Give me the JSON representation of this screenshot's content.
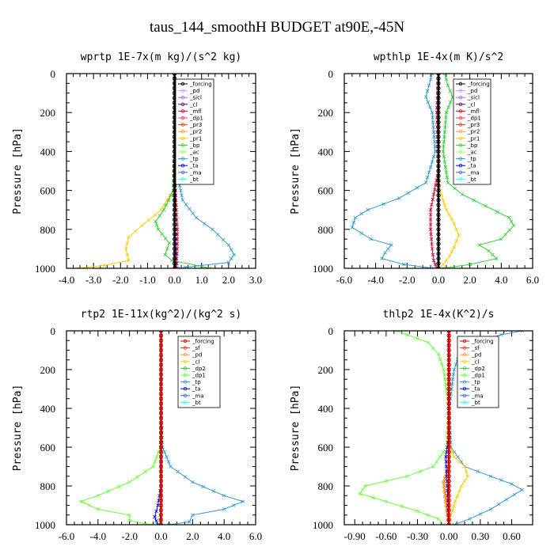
{
  "title": "taus_144_smoothH  BUDGET at90E,-45N",
  "chart_data": [
    {
      "type": "line",
      "title": "wprtp  1E-7x(m kg)/(s^2 kg)",
      "ylabel": "Pressure [hPa]",
      "xlim": [
        -4.0,
        3.0
      ],
      "ylim": [
        1000,
        0
      ],
      "xticks": [
        "-4.0",
        "-3.0",
        "-2.0",
        "-1.0",
        "0.0",
        "1.0",
        "2.0",
        "3.0"
      ],
      "xtick_values": [
        -4,
        -3,
        -2,
        -1,
        0,
        1,
        2,
        3
      ],
      "yticks": [
        "0",
        "200",
        "400",
        "600",
        "800",
        "1000"
      ],
      "ytick_values": [
        0,
        200,
        400,
        600,
        800,
        1000
      ],
      "legend": [
        "_forcing",
        "_pd",
        "_sicl",
        "_cl",
        "_mfl",
        "_dp1",
        "_pr3",
        "_pr2",
        "_pr1",
        "_bp",
        "_ac",
        "_tp",
        "_ta",
        "_ma",
        "_bt"
      ],
      "legend_colors": [
        "#000000",
        "#cc99ff",
        "#9966ff",
        "#660066",
        "#cc0033",
        "#ff3366",
        "#ff3300",
        "#ff9933",
        "#ffcc00",
        "#33cc33",
        "#99ff66",
        "#3399cc",
        "#0000cc",
        "#3366ff",
        "#33ffff"
      ],
      "series": [
        {
          "name": "_pr1",
          "color": "#ffcc00",
          "points": [
            [
              0,
              0
            ],
            [
              0,
              200
            ],
            [
              0,
              400
            ],
            [
              -0.05,
              600
            ],
            [
              -0.5,
              700
            ],
            [
              -1.2,
              780
            ],
            [
              -1.7,
              840
            ],
            [
              -1.8,
              900
            ],
            [
              -1.7,
              960
            ],
            [
              -2.6,
              985
            ],
            [
              -3.6,
              1000
            ]
          ]
        },
        {
          "name": "_bp",
          "color": "#33cc33",
          "points": [
            [
              0,
              0
            ],
            [
              0,
              400
            ],
            [
              -0.05,
              600
            ],
            [
              -0.4,
              700
            ],
            [
              -0.7,
              760
            ],
            [
              -0.6,
              800
            ],
            [
              -0.2,
              870
            ],
            [
              -0.35,
              930
            ],
            [
              -0.1,
              960
            ],
            [
              1.0,
              990
            ],
            [
              1.3,
              1000
            ]
          ]
        },
        {
          "name": "_tp",
          "color": "#3399cc",
          "points": [
            [
              0,
              0
            ],
            [
              0,
              400
            ],
            [
              0.15,
              550
            ],
            [
              0.3,
              650
            ],
            [
              0.8,
              740
            ],
            [
              1.4,
              800
            ],
            [
              2.0,
              880
            ],
            [
              2.2,
              930
            ],
            [
              2.0,
              970
            ],
            [
              0.4,
              995
            ],
            [
              0.2,
              1000
            ]
          ]
        },
        {
          "name": "_ma",
          "color": "#3366ff",
          "points": [
            [
              0,
              0
            ],
            [
              0,
              700
            ],
            [
              0.05,
              900
            ],
            [
              0.1,
              1000
            ]
          ]
        },
        {
          "name": "_mfl",
          "color": "#cc0033",
          "points": [
            [
              0,
              0
            ],
            [
              0,
              500
            ],
            [
              0.1,
              800
            ],
            [
              0.1,
              900
            ],
            [
              0.05,
              1000
            ]
          ]
        },
        {
          "name": "_forcing",
          "color": "#000000",
          "points": [
            [
              0,
              0
            ],
            [
              0,
              1000
            ]
          ]
        }
      ]
    },
    {
      "type": "line",
      "title": "wpthlp  1E-4x(m K)/s^2",
      "ylabel": "Pressure [hPa]",
      "xlim": [
        -6.0,
        6.0
      ],
      "ylim": [
        1000,
        0
      ],
      "xticks": [
        "-6.0",
        "-4.0",
        "-2.0",
        "0.0",
        "2.0",
        "4.0",
        "6.0"
      ],
      "xtick_values": [
        -6,
        -4,
        -2,
        0,
        2,
        4,
        6
      ],
      "yticks": [
        "0",
        "200",
        "400",
        "600",
        "800",
        "1000"
      ],
      "ytick_values": [
        0,
        200,
        400,
        600,
        800,
        1000
      ],
      "legend": [
        "_forcing",
        "_pd",
        "_sicl",
        "_cl",
        "_mfl",
        "_dp1",
        "_pr3",
        "_pr2",
        "_pr1",
        "_bp",
        "_ac",
        "_tp",
        "_ta",
        "_ma",
        "_bt"
      ],
      "legend_colors": [
        "#000000",
        "#cc99ff",
        "#9966ff",
        "#660066",
        "#cc0033",
        "#ff3366",
        "#ff3300",
        "#ff9933",
        "#ffcc00",
        "#33cc33",
        "#99ff66",
        "#3399cc",
        "#0000cc",
        "#3366ff",
        "#33ffff"
      ],
      "series": [
        {
          "name": "_bp",
          "color": "#33cc33",
          "points": [
            [
              0.4,
              0
            ],
            [
              0.6,
              60
            ],
            [
              0.9,
              120
            ],
            [
              0.5,
              200
            ],
            [
              0.3,
              400
            ],
            [
              0.6,
              560
            ],
            [
              1.5,
              620
            ],
            [
              3.0,
              680
            ],
            [
              4.5,
              740
            ],
            [
              4.8,
              780
            ],
            [
              4.0,
              850
            ],
            [
              2.6,
              880
            ],
            [
              3.2,
              910
            ],
            [
              3.7,
              950
            ],
            [
              2.0,
              980
            ],
            [
              0.3,
              1000
            ]
          ]
        },
        {
          "name": "_tp",
          "color": "#3399cc",
          "points": [
            [
              -0.4,
              0
            ],
            [
              -0.6,
              60
            ],
            [
              -0.8,
              120
            ],
            [
              -0.4,
              200
            ],
            [
              -0.2,
              400
            ],
            [
              -0.8,
              560
            ],
            [
              -2.5,
              640
            ],
            [
              -4.5,
              700
            ],
            [
              -5.3,
              740
            ],
            [
              -5.5,
              790
            ],
            [
              -4.3,
              850
            ],
            [
              -3.0,
              880
            ],
            [
              -3.4,
              920
            ],
            [
              -3.6,
              950
            ],
            [
              -2.2,
              980
            ],
            [
              -0.3,
              1000
            ]
          ]
        },
        {
          "name": "_pr1",
          "color": "#ffcc00",
          "points": [
            [
              0,
              0
            ],
            [
              0,
              500
            ],
            [
              0.1,
              600
            ],
            [
              0.5,
              700
            ],
            [
              1.0,
              770
            ],
            [
              1.3,
              830
            ],
            [
              1.0,
              890
            ],
            [
              0.7,
              940
            ],
            [
              0.3,
              980
            ],
            [
              0,
              1000
            ]
          ]
        },
        {
          "name": "_cl",
          "color": "#cc0033",
          "points": [
            [
              0,
              0
            ],
            [
              -0.1,
              200
            ],
            [
              0,
              500
            ],
            [
              -0.3,
              620
            ],
            [
              -0.5,
              700
            ],
            [
              -0.5,
              800
            ],
            [
              -0.4,
              900
            ],
            [
              -0.3,
              960
            ],
            [
              -0.1,
              1000
            ]
          ]
        },
        {
          "name": "_pd",
          "color": "#cc99ff",
          "points": [
            [
              0,
              0
            ],
            [
              0,
              1000
            ]
          ]
        },
        {
          "name": "_forcing",
          "color": "#000000",
          "points": [
            [
              0,
              0
            ],
            [
              0,
              1000
            ]
          ]
        }
      ]
    },
    {
      "type": "line",
      "title": "rtp2  1E-11x(kg^2)/(kg^2 s)",
      "ylabel": "Pressure [hPa]",
      "xlim": [
        -6.0,
        6.0
      ],
      "ylim": [
        1000,
        0
      ],
      "xticks": [
        "-6.0",
        "-4.0",
        "-2.0",
        "0.0",
        "2.0",
        "4.0",
        "6.0"
      ],
      "xtick_values": [
        -6,
        -4,
        -2,
        0,
        2,
        4,
        6
      ],
      "yticks": [
        "0",
        "200",
        "400",
        "600",
        "800",
        "1000"
      ],
      "ytick_values": [
        0,
        200,
        400,
        600,
        800,
        1000
      ],
      "legend": [
        "_forcing",
        "_sf",
        "_pd",
        "_cl",
        "_dp2",
        "_dp1",
        "_tp",
        "_ta",
        "_ma",
        "_bt"
      ],
      "legend_colors": [
        "#cc0000",
        "#ff3300",
        "#ff9933",
        "#ffcc00",
        "#33cc33",
        "#66ff33",
        "#3399cc",
        "#0000cc",
        "#3366ff",
        "#33ffff"
      ],
      "series": [
        {
          "name": "_dp1",
          "color": "#66ff33",
          "points": [
            [
              0,
              0
            ],
            [
              0,
              400
            ],
            [
              -0.05,
              600
            ],
            [
              -0.5,
              700
            ],
            [
              -2.0,
              780
            ],
            [
              -4.0,
              850
            ],
            [
              -5.1,
              880
            ],
            [
              -4.0,
              920
            ],
            [
              -2.0,
              950
            ],
            [
              -2.0,
              980
            ],
            [
              -1.0,
              995
            ],
            [
              -0.5,
              1000
            ]
          ]
        },
        {
          "name": "_tp",
          "color": "#3399cc",
          "points": [
            [
              0,
              0
            ],
            [
              0,
              400
            ],
            [
              0.1,
              600
            ],
            [
              0.6,
              700
            ],
            [
              2.0,
              780
            ],
            [
              4.0,
              850
            ],
            [
              5.2,
              880
            ],
            [
              4.0,
              920
            ],
            [
              2.0,
              950
            ],
            [
              1.8,
              985
            ],
            [
              0.5,
              1000
            ]
          ]
        },
        {
          "name": "_ta",
          "color": "#0000cc",
          "points": [
            [
              0,
              0
            ],
            [
              0,
              800
            ],
            [
              -0.2,
              900
            ],
            [
              -0.4,
              960
            ],
            [
              -0.2,
              1000
            ]
          ]
        },
        {
          "name": "_dp2",
          "color": "#33cc33",
          "points": [
            [
              0,
              0
            ],
            [
              0,
              900
            ],
            [
              -0.1,
              1000
            ]
          ]
        },
        {
          "name": "_forcing",
          "color": "#cc0000",
          "points": [
            [
              0,
              0
            ],
            [
              0,
              1000
            ]
          ]
        }
      ]
    },
    {
      "type": "line",
      "title": "thlp2  1E-4x(K^2)/s",
      "ylabel": "Pressure [hPa]",
      "xlim": [
        -1.0,
        0.8
      ],
      "ylim": [
        1000,
        0
      ],
      "xticks": [
        "-0.90",
        "-0.60",
        "-0.30",
        "0.00",
        "0.30",
        "0.60"
      ],
      "xtick_values": [
        -0.9,
        -0.6,
        -0.3,
        0.0,
        0.3,
        0.6
      ],
      "yticks": [
        "0",
        "200",
        "400",
        "600",
        "800",
        "1000"
      ],
      "ytick_values": [
        0,
        200,
        400,
        600,
        800,
        1000
      ],
      "legend": [
        "_forcing",
        "_sf",
        "_pd",
        "_cl",
        "_dp2",
        "_dp1",
        "_tp",
        "_ta",
        "_ma",
        "_bt"
      ],
      "legend_colors": [
        "#cc0000",
        "#ff3300",
        "#ff9933",
        "#ffcc00",
        "#33cc33",
        "#66ff33",
        "#3399cc",
        "#0000cc",
        "#3366ff",
        "#33ffff"
      ],
      "series": [
        {
          "name": "_dp1",
          "color": "#66ff33",
          "points": [
            [
              -0.5,
              0
            ],
            [
              -0.4,
              20
            ],
            [
              -0.2,
              60
            ],
            [
              -0.1,
              120
            ],
            [
              -0.05,
              200
            ],
            [
              0,
              400
            ],
            [
              -0.02,
              600
            ],
            [
              -0.15,
              700
            ],
            [
              -0.4,
              750
            ],
            [
              -0.8,
              800
            ],
            [
              -0.85,
              840
            ],
            [
              -0.6,
              880
            ],
            [
              -0.3,
              930
            ],
            [
              -0.1,
              970
            ],
            [
              -0.05,
              1000
            ]
          ]
        },
        {
          "name": "_tp",
          "color": "#3399cc",
          "points": [
            [
              0.7,
              0
            ],
            [
              0.5,
              20
            ],
            [
              0.25,
              60
            ],
            [
              0.1,
              120
            ],
            [
              0.05,
              200
            ],
            [
              0,
              400
            ],
            [
              0.02,
              600
            ],
            [
              0.15,
              700
            ],
            [
              0.4,
              750
            ],
            [
              0.6,
              790
            ],
            [
              0.7,
              820
            ],
            [
              0.55,
              870
            ],
            [
              0.4,
              920
            ],
            [
              0.2,
              970
            ],
            [
              0.05,
              1000
            ]
          ]
        },
        {
          "name": "_cl",
          "color": "#ffcc00",
          "points": [
            [
              0,
              0
            ],
            [
              0,
              580
            ],
            [
              0.05,
              650
            ],
            [
              0.15,
              700
            ],
            [
              0.18,
              750
            ],
            [
              0.12,
              800
            ],
            [
              0.06,
              880
            ],
            [
              0.02,
              950
            ],
            [
              0,
              1000
            ]
          ]
        },
        {
          "name": "_pd",
          "color": "#ff9933",
          "points": [
            [
              0,
              0
            ],
            [
              0,
              700
            ],
            [
              -0.05,
              780
            ],
            [
              -0.03,
              880
            ],
            [
              0,
              1000
            ]
          ]
        },
        {
          "name": "_ta",
          "color": "#0000cc",
          "points": [
            [
              0,
              0
            ],
            [
              0,
              550
            ],
            [
              -0.03,
              650
            ],
            [
              -0.02,
              750
            ],
            [
              0,
              1000
            ]
          ]
        },
        {
          "name": "_forcing",
          "color": "#cc0000",
          "points": [
            [
              0,
              0
            ],
            [
              0,
              1000
            ]
          ]
        }
      ]
    }
  ]
}
